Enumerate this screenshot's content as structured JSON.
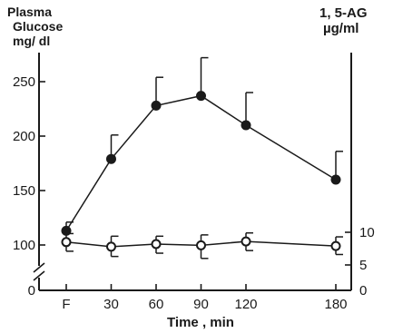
{
  "chart_data": {
    "type": "line",
    "left_axis_title_lines": [
      "Plasma",
      "Glucose",
      "mg/ dl"
    ],
    "right_axis_title_lines": [
      "1, 5-AG",
      "µg/ml"
    ],
    "xlabel": "Time , min",
    "categories": [
      "F",
      "30",
      "60",
      "90",
      "120",
      "180"
    ],
    "x": [
      0,
      30,
      60,
      90,
      120,
      180
    ],
    "left_ticks": [
      "250",
      "200",
      "150",
      "100",
      "0"
    ],
    "right_ticks": [
      "10",
      "5",
      "0"
    ],
    "left_axis_break": true,
    "series": [
      {
        "axis": "left",
        "marker": "filled-circle",
        "values": [
          113,
          179,
          228,
          237,
          210,
          160
        ],
        "error_upper": [
          121,
          201,
          254,
          272,
          240,
          186
        ]
      },
      {
        "axis": "right",
        "marker": "open-circle",
        "values": [
          8.5,
          7.8,
          8.2,
          8.0,
          8.6,
          7.9
        ],
        "error_upper": [
          9.8,
          9.4,
          9.4,
          9.6,
          9.9,
          9.3
        ],
        "error_lower": [
          7.1,
          6.3,
          6.8,
          6.0,
          7.2,
          6.6
        ]
      }
    ]
  }
}
